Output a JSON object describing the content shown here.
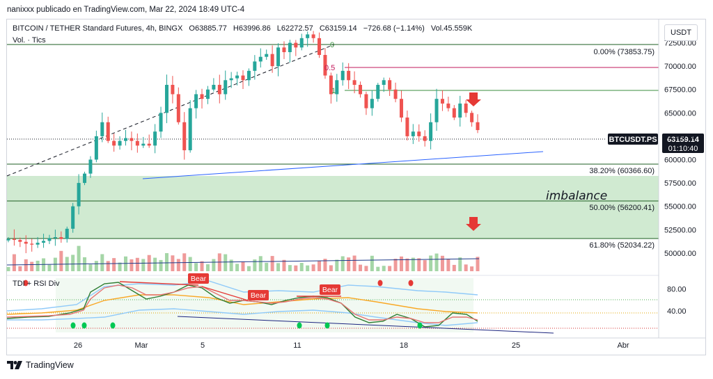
{
  "header": {
    "text": "nanixxx publicado en TradingView.com, Mar 22, 2024 18:49 UTC-4"
  },
  "symbol_line": {
    "title": "BITCOIN / TETHER Standard Futures, 4h, BINGX",
    "open": "O63885.77",
    "high": "H63996.86",
    "low": "L62272.57",
    "close": "C63159.14",
    "change": "−726.68 (−1.14%)",
    "volume": "Vol.45.559K"
  },
  "volume_label": "Vol. · Tics",
  "currency_button": "USDT",
  "price_tag": {
    "symbol": "BTCUSDT.PS",
    "price": "63159.14",
    "countdown": "01:10:40"
  },
  "fib_labels": [
    {
      "text": "0.00% (73853.75)",
      "price": 73853.75
    },
    {
      "text": "38.20% (60366.60)",
      "price": 60366.6
    },
    {
      "text": "50.00% (56200.41)",
      "price": 56200.41
    },
    {
      "text": "61.80% (52034.22)",
      "price": 52034.22
    }
  ],
  "fib_small_labels": [
    "0",
    "0.5",
    "1"
  ],
  "zone_label": "imbalance",
  "rsi_label": "TDI + RSI Div",
  "bear_labels": [
    "Bear",
    "Bear",
    "Bear"
  ],
  "footer": {
    "brand": "TradingView"
  },
  "colors": {
    "up": "#26a69a",
    "down": "#ef5350",
    "zone": "#c8e6c9",
    "trend": "#2962ff",
    "arrow": "#e53935"
  },
  "chart_data": {
    "type": "candlestick",
    "price_axis_ticks": [
      72500,
      70000,
      67500,
      65000,
      62500,
      60000,
      57500,
      55000,
      52500,
      50000
    ],
    "price_ylim": [
      48500,
      74700
    ],
    "rsi_axis_ticks": [
      80,
      40
    ],
    "x_tick_labels": [
      "26",
      "Mar",
      "5",
      "11",
      "18",
      "25",
      "Abr"
    ],
    "close_path": [
      51500,
      51400,
      51200,
      51000,
      50900,
      51100,
      51300,
      51600,
      51700,
      51500,
      52600,
      55000,
      57500,
      58500,
      60000,
      62500,
      64000,
      62000,
      61500,
      62000,
      62300,
      62000,
      61500,
      61700,
      61500,
      63000,
      65000,
      68000,
      67000,
      64000,
      61000,
      65500,
      67000,
      66500,
      67500,
      68000,
      67000,
      68500,
      68700,
      69000,
      68500,
      69500,
      70500,
      71000,
      71300,
      70000,
      72000,
      71500,
      72500,
      72000,
      73000,
      73400,
      73000,
      71200,
      69000,
      67000,
      68500,
      69500,
      68500,
      68000,
      67000,
      65500,
      66500,
      68000,
      68500,
      67500,
      66500,
      64500,
      62500,
      63000,
      62500,
      62000,
      64000,
      66500,
      66000,
      65500,
      64500,
      66000,
      65000,
      64000,
      63159
    ],
    "fib_levels": [
      {
        "ratio": "0.00%",
        "price": 73853.75
      },
      {
        "ratio": "38.20%",
        "price": 60366.6
      },
      {
        "ratio": "50.00%",
        "price": 56200.41
      },
      {
        "ratio": "61.80%",
        "price": 52034.22
      }
    ]
  }
}
